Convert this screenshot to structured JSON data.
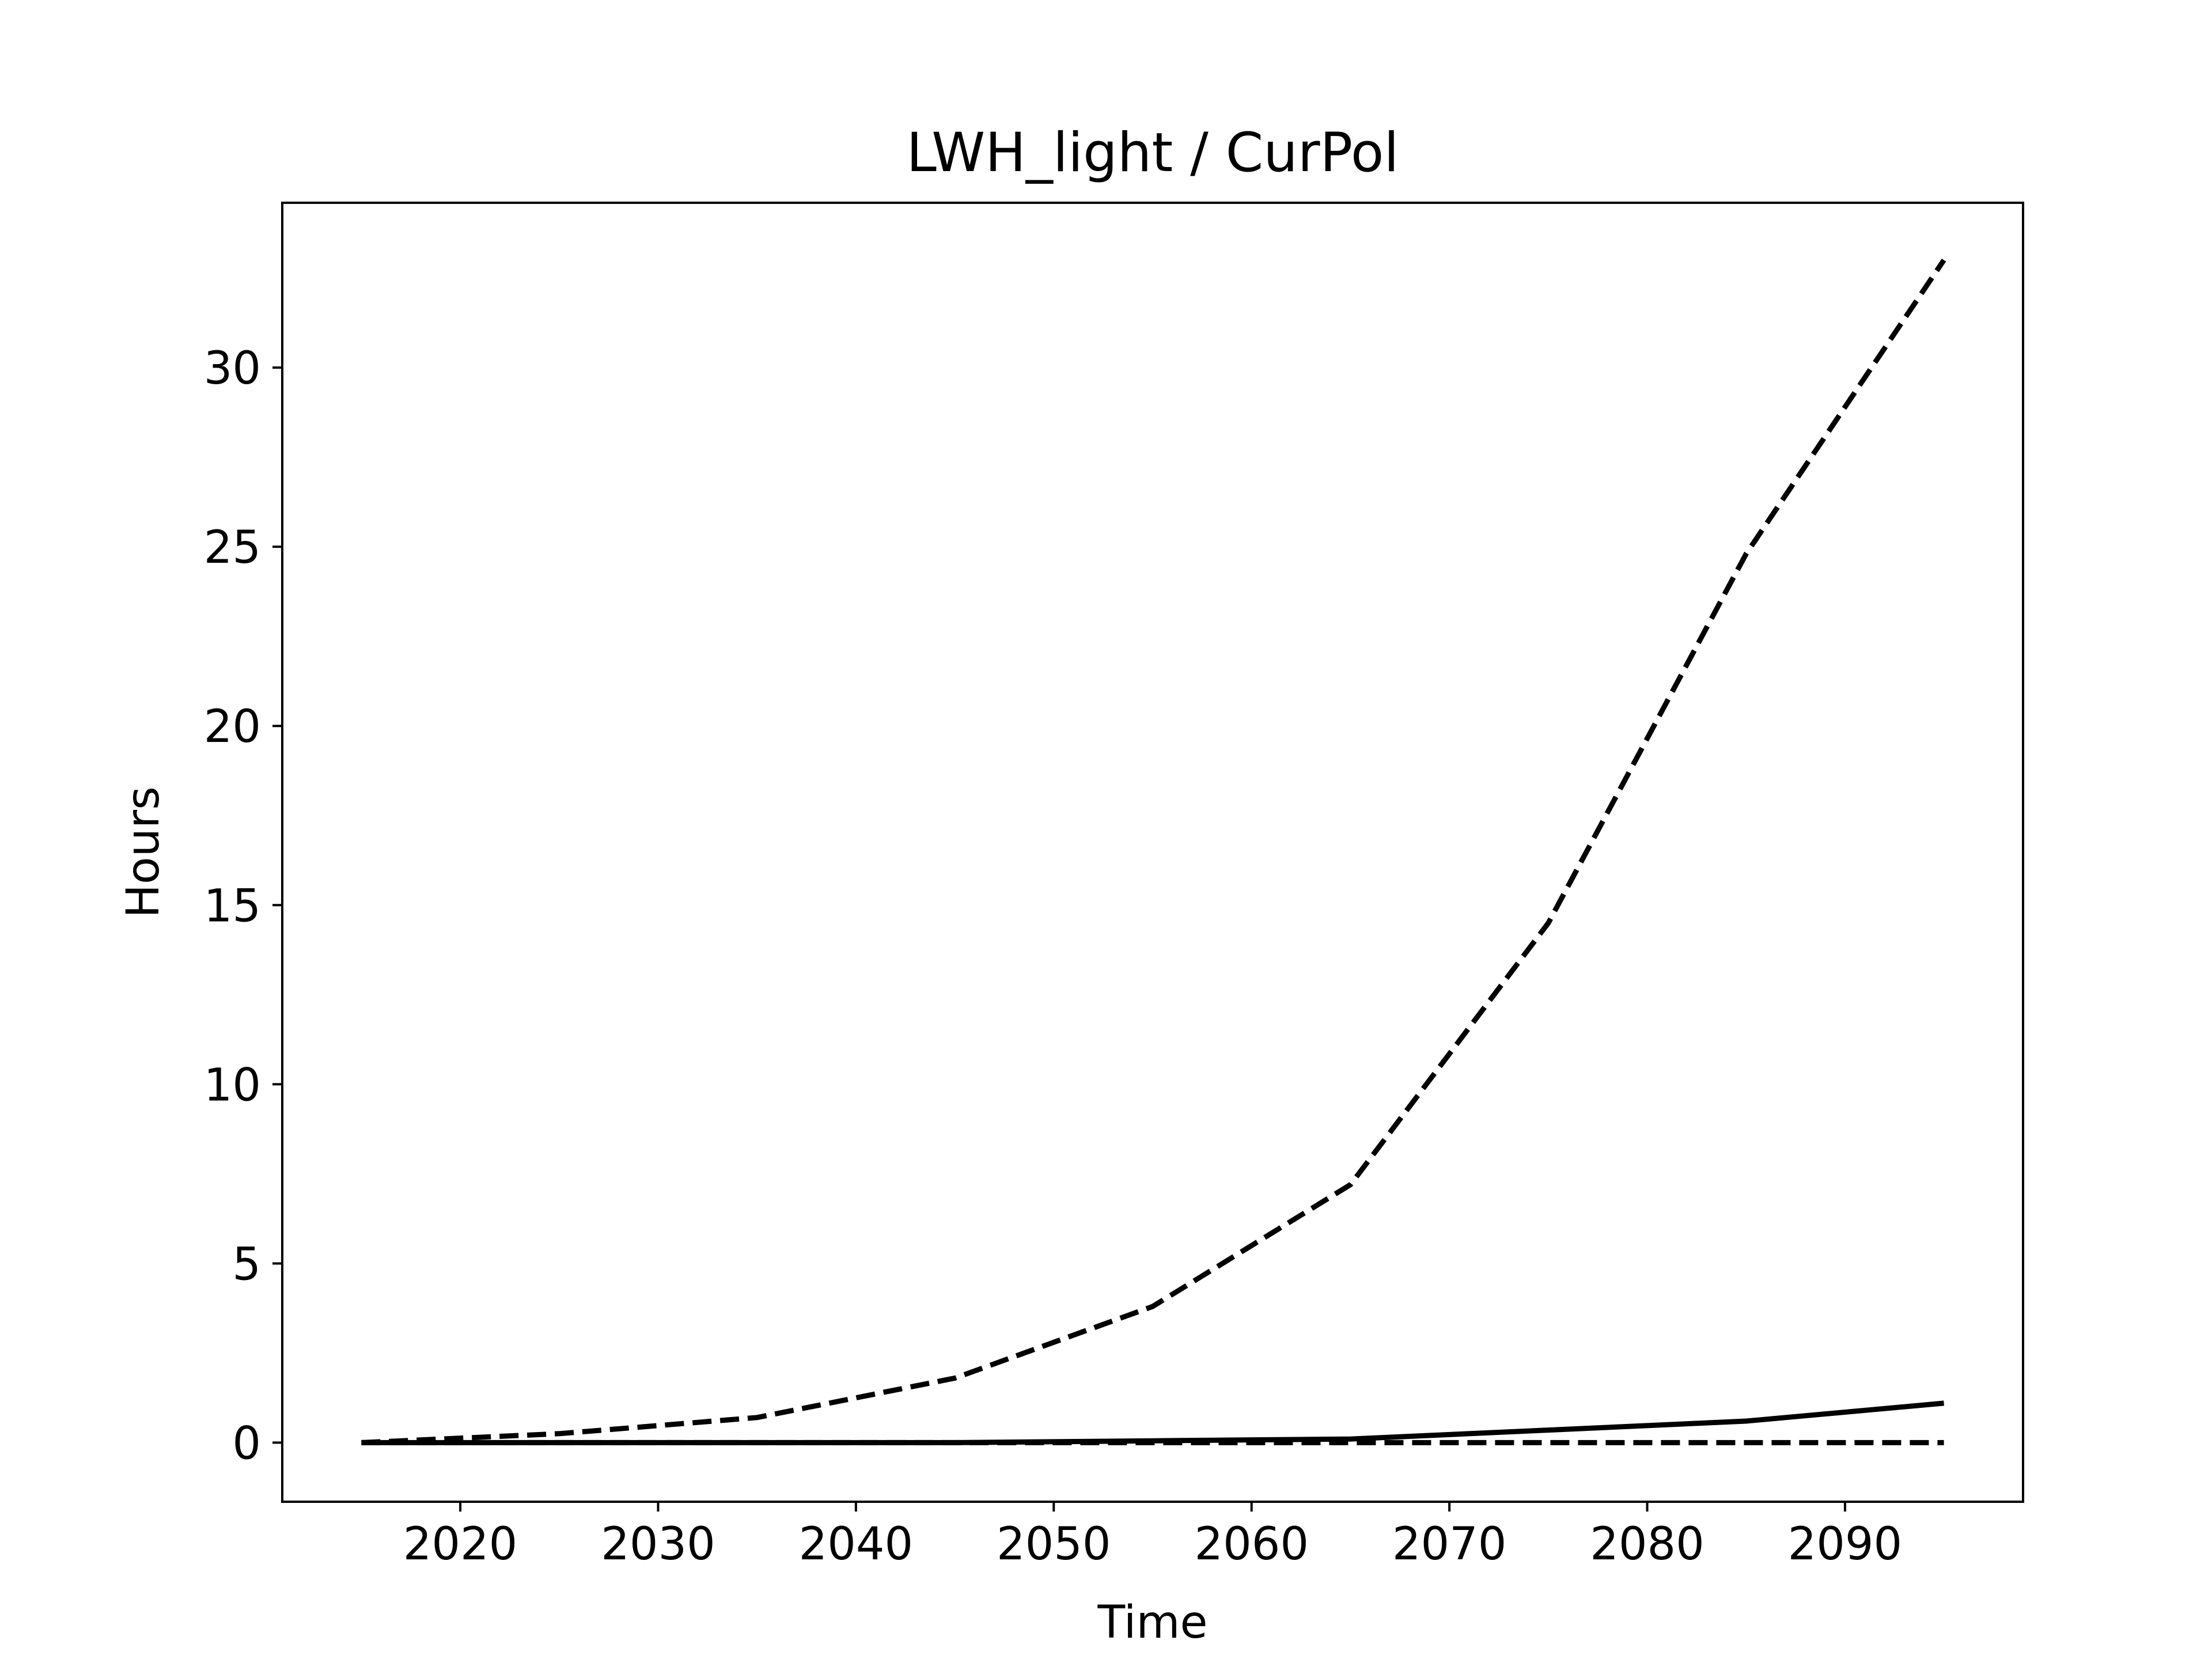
{
  "chart_data": {
    "type": "line",
    "title": "LWH_light / CurPol",
    "xlabel": "Time",
    "ylabel": "Hours",
    "xlim": [
      2011,
      2099
    ],
    "ylim": [
      -1.65,
      34.6
    ],
    "xticks": [
      2020,
      2030,
      2040,
      2050,
      2060,
      2070,
      2080,
      2090
    ],
    "yticks": [
      0,
      5,
      10,
      15,
      20,
      25,
      30
    ],
    "grid": false,
    "legend": null,
    "x": [
      2015,
      2025,
      2035,
      2045,
      2055,
      2065,
      2075,
      2085,
      2095
    ],
    "series": [
      {
        "style": "dashed",
        "color": "#000000",
        "values": [
          0.0,
          0.25,
          0.7,
          1.8,
          3.8,
          7.2,
          14.5,
          24.8,
          33.0
        ]
      },
      {
        "style": "solid",
        "color": "#000000",
        "values": [
          0.0,
          0.0,
          0.0,
          0.0,
          0.05,
          0.1,
          0.35,
          0.6,
          1.1
        ]
      },
      {
        "style": "dashed",
        "color": "#000000",
        "values": [
          0.0,
          0.0,
          0.0,
          0.0,
          0.0,
          0.0,
          0.0,
          0.0,
          0.0
        ]
      }
    ]
  }
}
